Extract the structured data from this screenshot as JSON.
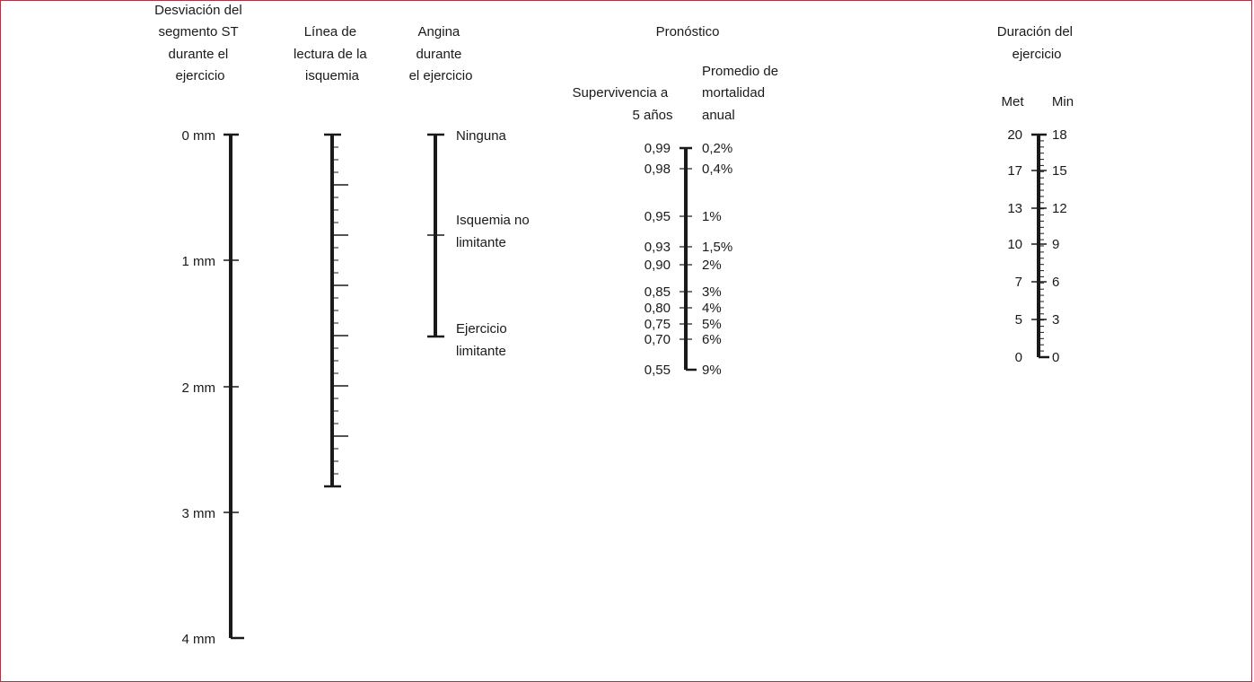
{
  "title": "",
  "stroke_color": "#1a1a1a",
  "border_color": "#a03a48",
  "scales": {
    "st_deviation": {
      "header": [
        "Desviación del",
        "segmento ST",
        "durante el",
        "ejercicio"
      ],
      "ticks": [
        "0 mm",
        "1 mm",
        "2 mm",
        "3 mm",
        "4 mm"
      ]
    },
    "ischemia_reading_line": {
      "header": [
        "Línea de",
        "lectura de la",
        "isquemia"
      ]
    },
    "angina": {
      "header": [
        "Angina",
        "durante",
        "el ejercicio"
      ],
      "levels": [
        [
          "Ninguna"
        ],
        [
          "Isquemia no",
          "limitante"
        ],
        [
          "Ejercicio",
          "limitante"
        ]
      ]
    },
    "prognosis": {
      "header": "Pronóstico",
      "survival_header": [
        "Supervivencia a",
        "5 años"
      ],
      "mortality_header": [
        "Promedio de",
        "mortalidad",
        "anual"
      ],
      "survival_ticks": [
        "0,99",
        "0,98",
        "0,95",
        "0,93",
        "0,90",
        "0,85",
        "0,80",
        "0,75",
        "0,70",
        "0,55"
      ],
      "mortality_ticks": [
        "0,2%",
        "0,4%",
        "1%",
        "1,5%",
        "2%",
        "3%",
        "4%",
        "5%",
        "6%",
        "9%"
      ]
    },
    "exercise_duration": {
      "header": [
        "Duración del",
        "ejercicio"
      ],
      "met_header": "Met",
      "min_header": "Min",
      "met_ticks": [
        "20",
        "17",
        "13",
        "10",
        "7",
        "5",
        "0"
      ],
      "min_ticks": [
        "18",
        "15",
        "12",
        "9",
        "6",
        "3",
        "0"
      ]
    }
  }
}
